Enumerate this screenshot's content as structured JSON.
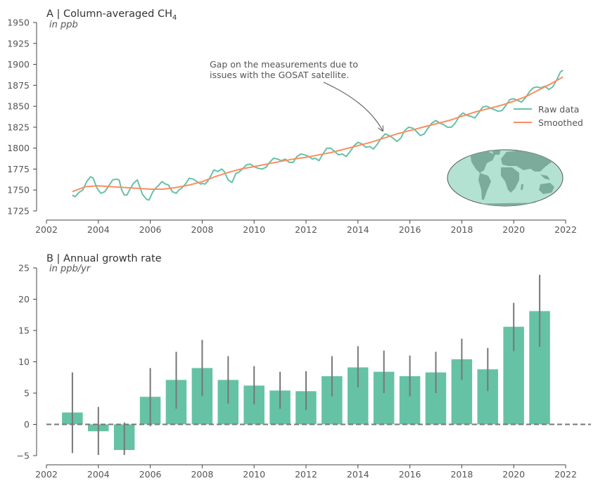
{
  "colors": {
    "raw": "#66c2a5",
    "smoothed": "#fc8d62",
    "bars": "#66c2a5",
    "error": "#777777",
    "axis": "#444444",
    "ocean": "#b3e2d3",
    "land": "#7aab9b"
  },
  "panel_a": {
    "title": "A | Column-averaged CH",
    "title_sub": "4",
    "unit": "in ppb",
    "annotation_line1": "Gap on the measurements due to",
    "annotation_line2": "issues with the GOSAT satellite.",
    "legend": [
      "Raw data",
      "Smoothed"
    ],
    "inset": "world-map-icon"
  },
  "panel_b": {
    "title": "B | Annual growth rate",
    "unit": "in ppb/yr"
  },
  "chart_data": [
    {
      "type": "line",
      "title": "A | Column-averaged CH4",
      "ylabel": "in ppb",
      "xlim": [
        2002,
        2022
      ],
      "ylim": [
        1725,
        1950
      ],
      "xticks": [
        2002,
        2004,
        2006,
        2008,
        2010,
        2012,
        2014,
        2016,
        2018,
        2020,
        2022
      ],
      "yticks": [
        1725,
        1750,
        1775,
        1800,
        1825,
        1850,
        1875,
        1900,
        1925,
        1950
      ],
      "legend_position": "right",
      "series": [
        {
          "name": "Raw data",
          "x": [
            2003.0,
            2003.1,
            2003.25,
            2003.4,
            2003.55,
            2003.7,
            2003.8,
            2003.95,
            2004.1,
            2004.25,
            2004.4,
            2004.55,
            2004.7,
            2004.8,
            2004.9,
            2005.0,
            2005.1,
            2005.2,
            2005.35,
            2005.5,
            2005.7,
            2005.85,
            2005.95,
            2006.1,
            2006.2,
            2006.3,
            2006.45,
            2006.6,
            2006.7,
            2006.85,
            2007.0,
            2007.1,
            2007.2,
            2007.35,
            2007.5,
            2007.65,
            2007.8,
            2007.95,
            2008.0,
            2008.1,
            2008.2,
            2008.3,
            2008.45,
            2008.6,
            2008.75,
            2008.85,
            2009.0,
            2009.15,
            2009.3,
            2009.4,
            2009.55,
            2009.7,
            2009.85,
            2010.0,
            2010.15,
            2010.3,
            2010.45,
            2010.6,
            2010.75,
            2010.9,
            2011.05,
            2011.2,
            2011.35,
            2011.5,
            2011.65,
            2011.8,
            2011.95,
            2012.1,
            2012.25,
            2012.35,
            2012.5,
            2012.65,
            2012.8,
            2012.95,
            2013.1,
            2013.25,
            2013.4,
            2013.55,
            2013.7,
            2013.85,
            2014.0,
            2014.15,
            2014.3,
            2014.45,
            2014.6,
            2014.75,
            2014.9,
            2015.05,
            2015.2,
            2015.35,
            2015.5,
            2015.65,
            2015.8,
            2015.95,
            2016.1,
            2016.25,
            2016.4,
            2016.55,
            2016.7,
            2016.85,
            2017.0,
            2017.15,
            2017.3,
            2017.45,
            2017.6,
            2017.75,
            2017.9,
            2018.05,
            2018.2,
            2018.35,
            2018.5,
            2018.65,
            2018.8,
            2018.95,
            2019.1,
            2019.25,
            2019.4,
            2019.55,
            2019.7,
            2019.85,
            2020.0,
            2020.15,
            2020.3,
            2020.45,
            2020.6,
            2020.75,
            2020.9,
            2021.05,
            2021.2,
            2021.35,
            2021.5,
            2021.65,
            2021.8,
            2021.9
          ],
          "y": [
            1744,
            1742,
            1747,
            1750,
            1760,
            1766,
            1764,
            1752,
            1746,
            1748,
            1755,
            1762,
            1763,
            1762,
            1750,
            1744,
            1744,
            1750,
            1758,
            1762,
            1745,
            1739,
            1738,
            1748,
            1752,
            1755,
            1760,
            1757,
            1756,
            1748,
            1746,
            1750,
            1752,
            1757,
            1764,
            1763,
            1760,
            1757,
            1758,
            1757,
            1760,
            1765,
            1774,
            1772,
            1775,
            1772,
            1762,
            1759,
            1770,
            1771,
            1775,
            1780,
            1781,
            1778,
            1776,
            1775,
            1777,
            1783,
            1788,
            1787,
            1785,
            1787,
            1783,
            1783,
            1790,
            1793,
            1792,
            1790,
            1787,
            1788,
            1785,
            1793,
            1800,
            1800,
            1796,
            1792,
            1793,
            1790,
            1796,
            1803,
            1807,
            1805,
            1801,
            1802,
            1799,
            1805,
            1812,
            1817,
            1815,
            1812,
            1808,
            1812,
            1821,
            1825,
            1824,
            1820,
            1815,
            1817,
            1824,
            1830,
            1833,
            1830,
            1828,
            1825,
            1825,
            1830,
            1838,
            1842,
            1839,
            1838,
            1836,
            1842,
            1849,
            1850,
            1848,
            1846,
            1844,
            1845,
            1851,
            1858,
            1859,
            1857,
            1855,
            1860,
            1867,
            1872,
            1873,
            1872,
            1874,
            1870,
            1873,
            1881,
            1891,
            1893
          ]
        },
        {
          "name": "Smoothed",
          "x": [
            2003.0,
            2003.5,
            2004.0,
            2004.5,
            2005.0,
            2005.5,
            2006.0,
            2006.5,
            2007.0,
            2007.5,
            2008.0,
            2008.5,
            2009.0,
            2009.5,
            2010.0,
            2010.5,
            2011.0,
            2011.5,
            2012.0,
            2012.5,
            2013.0,
            2013.5,
            2014.0,
            2014.5,
            2015.0,
            2015.5,
            2016.0,
            2016.5,
            2017.0,
            2017.5,
            2018.0,
            2018.5,
            2019.0,
            2019.5,
            2020.0,
            2020.5,
            2021.0,
            2021.5,
            2021.9
          ],
          "y": [
            1748,
            1754,
            1755,
            1754,
            1753,
            1752,
            1751,
            1751,
            1753,
            1756,
            1760,
            1766,
            1771,
            1775,
            1778,
            1781,
            1784,
            1787,
            1789,
            1792,
            1795,
            1799,
            1803,
            1807,
            1812,
            1817,
            1821,
            1825,
            1829,
            1833,
            1838,
            1843,
            1847,
            1851,
            1856,
            1862,
            1870,
            1878,
            1885
          ]
        }
      ],
      "annotations": [
        "Gap on the measurements due to issues with the GOSAT satellite."
      ]
    },
    {
      "type": "bar",
      "title": "B | Annual growth rate",
      "ylabel": "in ppb/yr",
      "xlim": [
        2002,
        2022
      ],
      "ylim": [
        -6,
        25
      ],
      "xticks": [
        2002,
        2004,
        2006,
        2008,
        2010,
        2012,
        2014,
        2016,
        2018,
        2020,
        2022
      ],
      "yticks": [
        -5,
        0,
        5,
        10,
        15,
        20,
        25
      ],
      "reference_line": 0,
      "x": [
        2003,
        2004,
        2005,
        2006,
        2007,
        2008,
        2009,
        2010,
        2011,
        2012,
        2013,
        2014,
        2015,
        2016,
        2017,
        2018,
        2019,
        2020,
        2021
      ],
      "values": [
        1.9,
        -1.1,
        -4.1,
        4.4,
        7.1,
        9.0,
        7.1,
        6.2,
        5.4,
        5.3,
        7.7,
        9.1,
        8.4,
        7.7,
        8.3,
        10.4,
        8.8,
        15.6,
        18.1
      ],
      "err_low": [
        -4.6,
        -4.9,
        -4.9,
        -0.3,
        2.5,
        4.5,
        3.3,
        3.2,
        2.5,
        2.3,
        4.5,
        5.9,
        5.0,
        4.5,
        5.0,
        7.1,
        5.3,
        11.7,
        12.4
      ],
      "err_high": [
        8.3,
        2.8,
        0.3,
        9.0,
        11.6,
        13.5,
        10.9,
        9.3,
        8.4,
        8.5,
        10.9,
        12.5,
        11.8,
        11.0,
        11.6,
        13.7,
        12.2,
        19.4,
        23.9
      ]
    }
  ]
}
